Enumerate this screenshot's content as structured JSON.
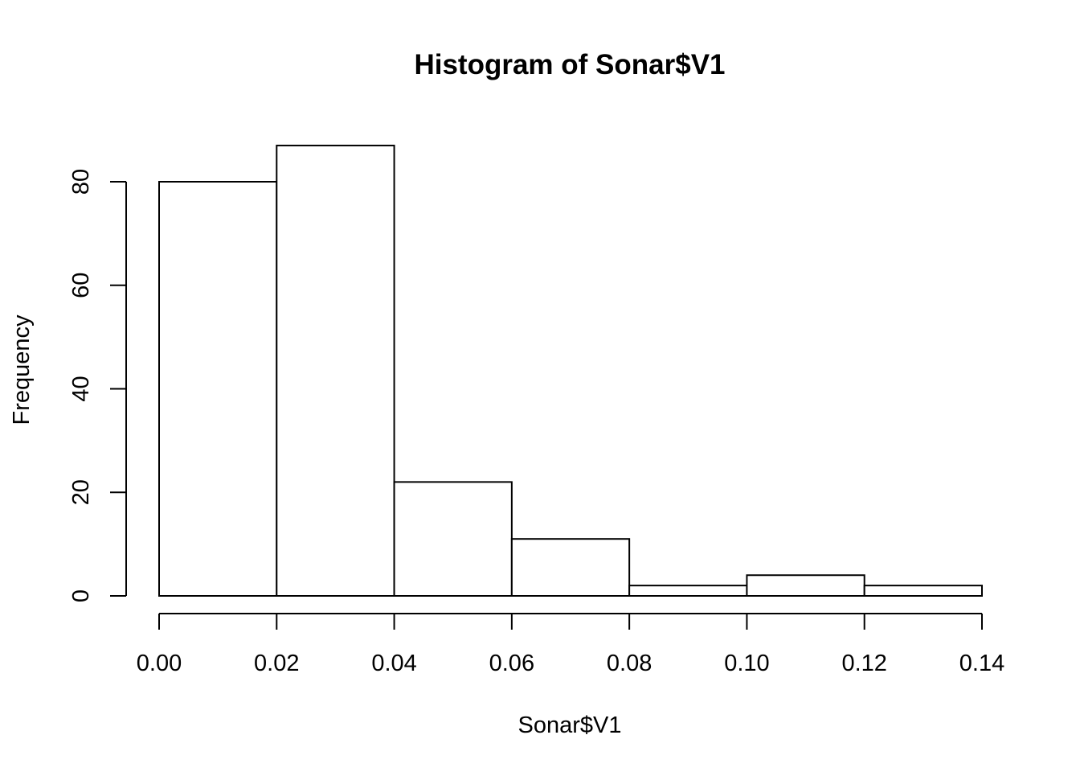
{
  "chart_data": {
    "type": "bar",
    "title": "Histogram of Sonar$V1",
    "xlabel": "Sonar$V1",
    "ylabel": "Frequency",
    "bins": [
      {
        "start": 0.0,
        "end": 0.02,
        "value": 80
      },
      {
        "start": 0.02,
        "end": 0.04,
        "value": 87
      },
      {
        "start": 0.04,
        "end": 0.06,
        "value": 22
      },
      {
        "start": 0.06,
        "end": 0.08,
        "value": 11
      },
      {
        "start": 0.08,
        "end": 0.1,
        "value": 2
      },
      {
        "start": 0.1,
        "end": 0.12,
        "value": 4
      },
      {
        "start": 0.12,
        "end": 0.14,
        "value": 2
      }
    ],
    "xlim": [
      0.0,
      0.14
    ],
    "ylim": [
      0,
      87
    ],
    "xticks": [
      0.0,
      0.02,
      0.04,
      0.06,
      0.08,
      0.1,
      0.12,
      0.14
    ],
    "xtick_labels": [
      "0.00",
      "0.02",
      "0.04",
      "0.06",
      "0.08",
      "0.10",
      "0.12",
      "0.14"
    ],
    "yticks": [
      0,
      20,
      40,
      60,
      80
    ],
    "ytick_labels": [
      "0",
      "20",
      "40",
      "60",
      "80"
    ],
    "grid": false,
    "bar_fill": "#ffffff",
    "bar_stroke": "#000000"
  }
}
